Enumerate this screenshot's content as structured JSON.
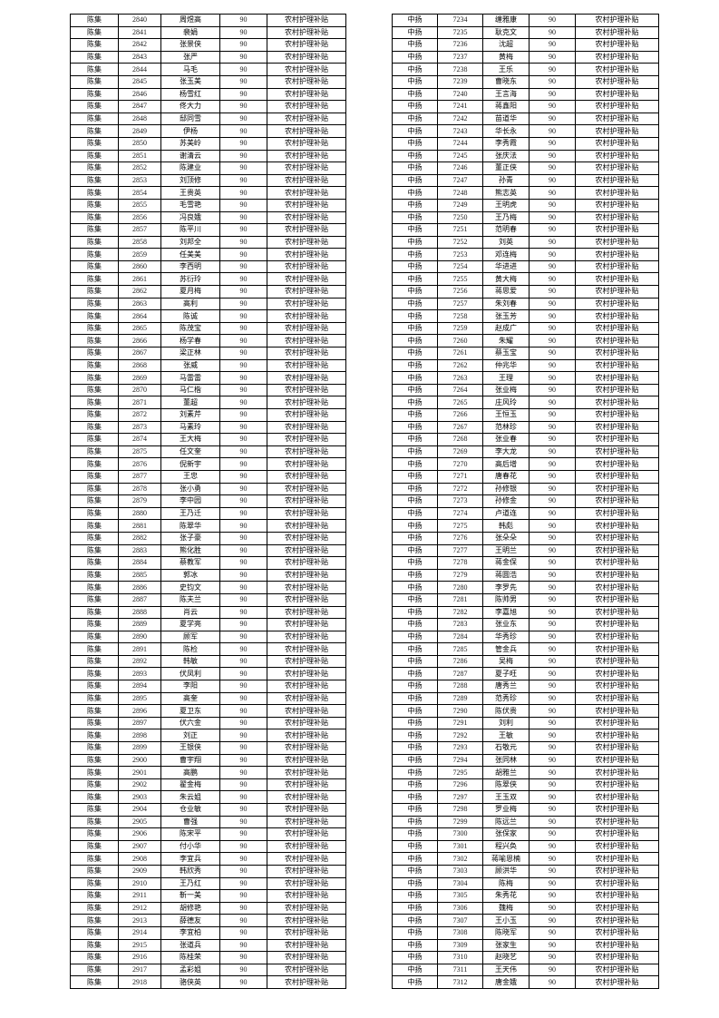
{
  "tables": [
    {
      "village": "陈集",
      "amount": "90",
      "subsidy_type": "农村护理补贴",
      "rows": [
        [
          "2840",
          "周煜高"
        ],
        [
          "2841",
          "裴娟"
        ],
        [
          "2842",
          "张景侠"
        ],
        [
          "2843",
          "张严"
        ],
        [
          "2844",
          "马毛"
        ],
        [
          "2845",
          "张玉美"
        ],
        [
          "2846",
          "杨雪红"
        ],
        [
          "2847",
          "佟大力"
        ],
        [
          "2848",
          "邸同雪"
        ],
        [
          "2849",
          "伊杨"
        ],
        [
          "2850",
          "苏美岭"
        ],
        [
          "2851",
          "谢清云"
        ],
        [
          "2852",
          "陈建业"
        ],
        [
          "2853",
          "刘顶修"
        ],
        [
          "2854",
          "王贵英"
        ],
        [
          "2855",
          "毛雪艳"
        ],
        [
          "2856",
          "冯良娥"
        ],
        [
          "2857",
          "陈平川"
        ],
        [
          "2858",
          "刘邦全"
        ],
        [
          "2859",
          "任美美"
        ],
        [
          "2860",
          "李西明"
        ],
        [
          "2861",
          "苏衍玲"
        ],
        [
          "2862",
          "夏月梅"
        ],
        [
          "2863",
          "高利"
        ],
        [
          "2864",
          "陈诚"
        ],
        [
          "2865",
          "陈茂宝"
        ],
        [
          "2866",
          "杨学春"
        ],
        [
          "2867",
          "梁正林"
        ],
        [
          "2868",
          "张威"
        ],
        [
          "2869",
          "马雷雷"
        ],
        [
          "2870",
          "马仁楷"
        ],
        [
          "2871",
          "董超"
        ],
        [
          "2872",
          "刘素芹"
        ],
        [
          "2873",
          "马素玲"
        ],
        [
          "2874",
          "王大梅"
        ],
        [
          "2875",
          "任文奎"
        ],
        [
          "2876",
          "倪新宇"
        ],
        [
          "2877",
          "王忠"
        ],
        [
          "2878",
          "张小勇"
        ],
        [
          "2879",
          "李中园"
        ],
        [
          "2880",
          "王乃迁"
        ],
        [
          "2881",
          "陈翠华"
        ],
        [
          "2882",
          "张子豪"
        ],
        [
          "2883",
          "熊化胜"
        ],
        [
          "2884",
          "蔡教军"
        ],
        [
          "2885",
          "郭冰"
        ],
        [
          "2886",
          "史钧文"
        ],
        [
          "2887",
          "陈夫兰"
        ],
        [
          "2888",
          "肖云"
        ],
        [
          "2889",
          "夏学亮"
        ],
        [
          "2890",
          "顾军"
        ],
        [
          "2891",
          "陈检"
        ],
        [
          "2892",
          "韩敏"
        ],
        [
          "2893",
          "伏凤利"
        ],
        [
          "2894",
          "李阳"
        ],
        [
          "2895",
          "高奎"
        ],
        [
          "2896",
          "夏卫东"
        ],
        [
          "2897",
          "伏六金"
        ],
        [
          "2898",
          "刘正"
        ],
        [
          "2899",
          "王银侠"
        ],
        [
          "2900",
          "曹宇翔"
        ],
        [
          "2901",
          "高鹏"
        ],
        [
          "2902",
          "翟金梅"
        ],
        [
          "2903",
          "朱云姐"
        ],
        [
          "2904",
          "仓业敏"
        ],
        [
          "2905",
          "曹强"
        ],
        [
          "2906",
          "陈宋平"
        ],
        [
          "2907",
          "付小华"
        ],
        [
          "2908",
          "李宜兵"
        ],
        [
          "2909",
          "韩欣秀"
        ],
        [
          "2910",
          "王乃红"
        ],
        [
          "2911",
          "靳一美"
        ],
        [
          "2912",
          "胡修艳"
        ],
        [
          "2913",
          "薛德友"
        ],
        [
          "2914",
          "李宜柏"
        ],
        [
          "2915",
          "张道兵"
        ],
        [
          "2916",
          "陈桂荣"
        ],
        [
          "2917",
          "孟彩姐"
        ],
        [
          "2918",
          "骆侠英"
        ]
      ]
    },
    {
      "village": "中扬",
      "amount": "90",
      "subsidy_type": "农村护理补贴",
      "rows": [
        [
          "7234",
          "缠雅康"
        ],
        [
          "7235",
          "耿克文"
        ],
        [
          "7236",
          "沈超"
        ],
        [
          "7237",
          "黄梅"
        ],
        [
          "7238",
          "王乐"
        ],
        [
          "7239",
          "曹晓东"
        ],
        [
          "7240",
          "王言海"
        ],
        [
          "7241",
          "蒋鑫阳"
        ],
        [
          "7242",
          "苗道华"
        ],
        [
          "7243",
          "华长永"
        ],
        [
          "7244",
          "李秀霞"
        ],
        [
          "7245",
          "张庆法"
        ],
        [
          "7246",
          "董正侠"
        ],
        [
          "7247",
          "孙青"
        ],
        [
          "7248",
          "熊志英"
        ],
        [
          "7249",
          "王明虎"
        ],
        [
          "7250",
          "王乃梅"
        ],
        [
          "7251",
          "范明春"
        ],
        [
          "7252",
          "刘英"
        ],
        [
          "7253",
          "邓连梅"
        ],
        [
          "7254",
          "华进进"
        ],
        [
          "7255",
          "黄大梅"
        ],
        [
          "7256",
          "蒋思爱"
        ],
        [
          "7257",
          "朱刘春"
        ],
        [
          "7258",
          "张玉芳"
        ],
        [
          "7259",
          "赵成广"
        ],
        [
          "7260",
          "朱耀"
        ],
        [
          "7261",
          "蔡玉宝"
        ],
        [
          "7262",
          "仲兆华"
        ],
        [
          "7263",
          "王理"
        ],
        [
          "7264",
          "张业梅"
        ],
        [
          "7265",
          "庄风玲"
        ],
        [
          "7266",
          "王恒玉"
        ],
        [
          "7267",
          "范林珍"
        ],
        [
          "7268",
          "张业春"
        ],
        [
          "7269",
          "李大龙"
        ],
        [
          "7270",
          "高后增"
        ],
        [
          "7271",
          "唐春花"
        ],
        [
          "7272",
          "孙修银"
        ],
        [
          "7273",
          "孙修金"
        ],
        [
          "7274",
          "卢道连"
        ],
        [
          "7275",
          "韩彪"
        ],
        [
          "7276",
          "张朵朵"
        ],
        [
          "7277",
          "王明兰"
        ],
        [
          "7278",
          "蒋金保"
        ],
        [
          "7279",
          "蒋圆浩"
        ],
        [
          "7280",
          "李罗先"
        ],
        [
          "7281",
          "陈帅男"
        ],
        [
          "7282",
          "李嘉旭"
        ],
        [
          "7283",
          "张业东"
        ],
        [
          "7284",
          "华秀珍"
        ],
        [
          "7285",
          "管金兵"
        ],
        [
          "7286",
          "吴梅"
        ],
        [
          "7287",
          "夏子旺"
        ],
        [
          "7288",
          "唐秀兰"
        ],
        [
          "7289",
          "范秀珍"
        ],
        [
          "7290",
          "陈伏贵"
        ],
        [
          "7291",
          "刘利"
        ],
        [
          "7292",
          "王敏"
        ],
        [
          "7293",
          "石敬元"
        ],
        [
          "7294",
          "张同林"
        ],
        [
          "7295",
          "胡雅兰"
        ],
        [
          "7296",
          "陈翠侠"
        ],
        [
          "7297",
          "王玉双"
        ],
        [
          "7298",
          "罗业梅"
        ],
        [
          "7299",
          "陈远兰"
        ],
        [
          "7300",
          "张保家"
        ],
        [
          "7301",
          "程兴奂"
        ],
        [
          "7302",
          "蒋喻恩楠"
        ],
        [
          "7303",
          "顾洪华"
        ],
        [
          "7304",
          "陈梅"
        ],
        [
          "7305",
          "朱秀花"
        ],
        [
          "7306",
          "魏梅"
        ],
        [
          "7307",
          "王小玉"
        ],
        [
          "7308",
          "陈晓军"
        ],
        [
          "7309",
          "张家生"
        ],
        [
          "7310",
          "赵晓艺"
        ],
        [
          "7311",
          "王天伟"
        ],
        [
          "7312",
          "唐金娥"
        ]
      ]
    }
  ]
}
